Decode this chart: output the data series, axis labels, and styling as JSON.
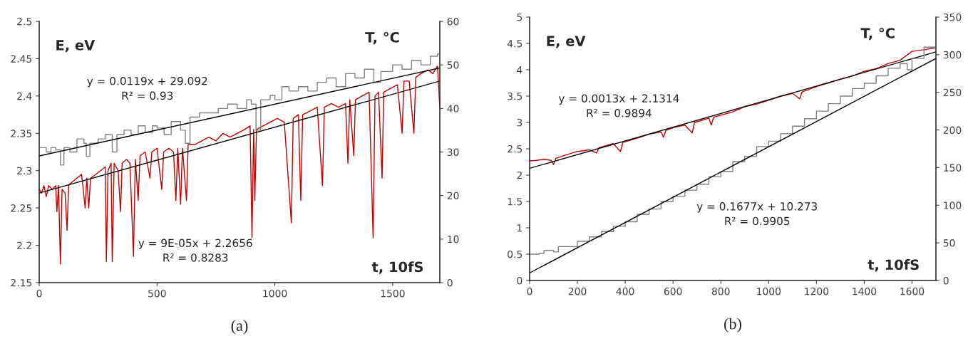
{
  "chart_data": [
    {
      "type": "line",
      "xlabel": "t, 10fS",
      "ylabel": "E, eV",
      "y2label": "T, °C",
      "xlim": [
        0,
        1700
      ],
      "xticks": [
        0,
        500,
        1000,
        1500
      ],
      "ylim": [
        2.15,
        2.5
      ],
      "yticks": [
        2.15,
        2.2,
        2.25,
        2.3,
        2.35,
        2.4,
        2.45,
        2.5
      ],
      "y2lim": [
        0,
        60
      ],
      "y2ticks": [
        0,
        10,
        20,
        30,
        40,
        50,
        60
      ],
      "grid": false,
      "legend": false,
      "annotations": [
        "y = 0.0119x + 29.092\nR² = 0.93",
        "y = 9E-05x + 2.2656\nR² = 0.8283",
        "(a)"
      ],
      "series": [
        {
          "type": "step",
          "axis": "y2",
          "color": "#808080",
          "x": [
            0,
            30,
            50,
            70,
            90,
            105,
            130,
            160,
            190,
            200,
            215,
            250,
            280,
            310,
            330,
            360,
            390,
            420,
            450,
            480,
            500,
            530,
            560,
            600,
            620,
            640,
            680,
            720,
            760,
            800,
            840,
            880,
            900,
            920,
            940,
            980,
            1000,
            1030,
            1060,
            1100,
            1140,
            1180,
            1220,
            1260,
            1300,
            1340,
            1380,
            1420,
            1450,
            1500,
            1540,
            1580,
            1620,
            1660,
            1690,
            1700
          ],
          "values": [
            31,
            30,
            31,
            30.5,
            27,
            31,
            30,
            33,
            32,
            29,
            32,
            33,
            34,
            30,
            34,
            35,
            34,
            36,
            34.5,
            36,
            35.5,
            34,
            37,
            35,
            32,
            38,
            39,
            39,
            40,
            41,
            40,
            42,
            41,
            35,
            42,
            43,
            42,
            45,
            44,
            45,
            44,
            46,
            47,
            45,
            48,
            47,
            49,
            46,
            48.5,
            50,
            49,
            51,
            50,
            52,
            52.5,
            50
          ]
        },
        {
          "color": "#c00000",
          "x": [
            0,
            10,
            20,
            30,
            40,
            55,
            70,
            75,
            82,
            90,
            97,
            110,
            118,
            125,
            140,
            160,
            180,
            195,
            202,
            210,
            218,
            240,
            260,
            280,
            285,
            292,
            305,
            310,
            318,
            335,
            345,
            352,
            370,
            385,
            400,
            408,
            420,
            428,
            450,
            470,
            478,
            500,
            520,
            528,
            550,
            570,
            580,
            588,
            600,
            608,
            625,
            632,
            660,
            690,
            720,
            750,
            780,
            810,
            840,
            870,
            895,
            903,
            910,
            915,
            922,
            950,
            980,
            1010,
            1040,
            1070,
            1078,
            1100,
            1110,
            1118,
            1150,
            1180,
            1202,
            1210,
            1240,
            1270,
            1300,
            1310,
            1318,
            1335,
            1342,
            1370,
            1400,
            1417,
            1425,
            1440,
            1455,
            1462,
            1490,
            1520,
            1540,
            1548,
            1570,
            1590,
            1598,
            1620,
            1650,
            1670,
            1690,
            1700
          ],
          "values": [
            2.275,
            2.27,
            2.28,
            2.265,
            2.28,
            2.275,
            2.28,
            2.245,
            2.28,
            2.175,
            2.275,
            2.27,
            2.22,
            2.28,
            2.285,
            2.29,
            2.295,
            2.25,
            2.29,
            2.25,
            2.29,
            2.295,
            2.3,
            2.305,
            2.178,
            2.3,
            2.31,
            2.178,
            2.31,
            2.3,
            2.245,
            2.31,
            2.315,
            2.31,
            2.185,
            2.315,
            2.26,
            2.32,
            2.325,
            2.29,
            2.325,
            2.33,
            2.275,
            2.325,
            2.33,
            2.325,
            2.26,
            2.33,
            2.255,
            2.33,
            2.26,
            2.335,
            2.335,
            2.34,
            2.345,
            2.34,
            2.35,
            2.345,
            2.35,
            2.355,
            2.36,
            2.21,
            2.355,
            2.26,
            2.355,
            2.36,
            2.365,
            2.37,
            2.365,
            2.23,
            2.37,
            2.375,
            2.26,
            2.375,
            2.38,
            2.385,
            2.28,
            2.385,
            2.39,
            2.385,
            2.39,
            2.31,
            2.395,
            2.32,
            2.395,
            2.4,
            2.405,
            2.21,
            2.4,
            2.405,
            2.29,
            2.405,
            2.41,
            2.415,
            2.35,
            2.42,
            2.42,
            2.35,
            2.425,
            2.43,
            2.435,
            2.43,
            2.44,
            2.385
          ]
        },
        {
          "axis": "y2",
          "color": "#000000",
          "x": [
            0,
            1700
          ],
          "values": [
            29.1,
            49.3
          ]
        },
        {
          "color": "#000000",
          "x": [
            0,
            1700
          ],
          "values": [
            2.27,
            2.42
          ]
        }
      ]
    },
    {
      "type": "line",
      "xlabel": "t, 10fS",
      "ylabel": "E, eV",
      "y2label": "T, °C",
      "xlim": [
        0,
        1700
      ],
      "xticks": [
        0,
        200,
        400,
        600,
        800,
        1000,
        1200,
        1400,
        1600
      ],
      "ylim": [
        0,
        5
      ],
      "yticks": [
        0,
        0.5,
        1,
        1.5,
        2,
        2.5,
        3,
        3.5,
        4,
        4.5,
        5
      ],
      "y2lim": [
        0,
        350
      ],
      "y2ticks": [
        0,
        50,
        100,
        150,
        200,
        250,
        300,
        350
      ],
      "grid": false,
      "legend": false,
      "annotations": [
        "y = 0.0013x + 2.1314\nR² = 0.9894",
        "y = 0.1677x + 10.273\nR² = 0.9905",
        "(b)"
      ],
      "series": [
        {
          "type": "step",
          "axis": "y2",
          "color": "#808080",
          "x": [
            0,
            40,
            60,
            100,
            120,
            200,
            250,
            300,
            350,
            400,
            450,
            500,
            550,
            600,
            650,
            700,
            750,
            800,
            850,
            900,
            950,
            1000,
            1050,
            1100,
            1150,
            1200,
            1250,
            1300,
            1350,
            1400,
            1450,
            1500,
            1550,
            1580,
            1600,
            1650,
            1700
          ],
          "values": [
            35,
            36,
            40,
            38,
            45,
            52,
            58,
            65,
            72,
            78,
            88,
            95,
            105,
            112,
            120,
            128,
            138,
            145,
            158,
            165,
            178,
            185,
            195,
            205,
            215,
            225,
            235,
            245,
            255,
            262,
            272,
            282,
            288,
            280,
            295,
            310,
            308
          ]
        },
        {
          "color": "#c00000",
          "x": [
            0,
            30,
            60,
            90,
            100,
            110,
            150,
            200,
            250,
            280,
            290,
            350,
            380,
            390,
            450,
            500,
            550,
            560,
            570,
            600,
            650,
            680,
            690,
            750,
            760,
            770,
            850,
            900,
            950,
            1000,
            1050,
            1100,
            1130,
            1140,
            1200,
            1250,
            1300,
            1350,
            1400,
            1450,
            1500,
            1550,
            1600,
            1650,
            1700
          ],
          "values": [
            2.27,
            2.28,
            2.3,
            2.28,
            2.2,
            2.32,
            2.38,
            2.45,
            2.48,
            2.42,
            2.52,
            2.6,
            2.45,
            2.62,
            2.7,
            2.78,
            2.82,
            2.72,
            2.85,
            2.9,
            2.95,
            2.8,
            3.0,
            3.08,
            2.95,
            3.1,
            3.2,
            3.3,
            3.35,
            3.42,
            3.5,
            3.55,
            3.45,
            3.58,
            3.68,
            3.75,
            3.82,
            3.88,
            3.97,
            4.02,
            4.12,
            4.18,
            4.35,
            4.38,
            4.42
          ]
        },
        {
          "color": "#000000",
          "x": [
            0,
            1700
          ],
          "values": [
            2.13,
            4.34
          ]
        },
        {
          "axis": "y2",
          "color": "#000000",
          "x": [
            0,
            1700
          ],
          "values": [
            10,
            295
          ]
        }
      ]
    }
  ]
}
